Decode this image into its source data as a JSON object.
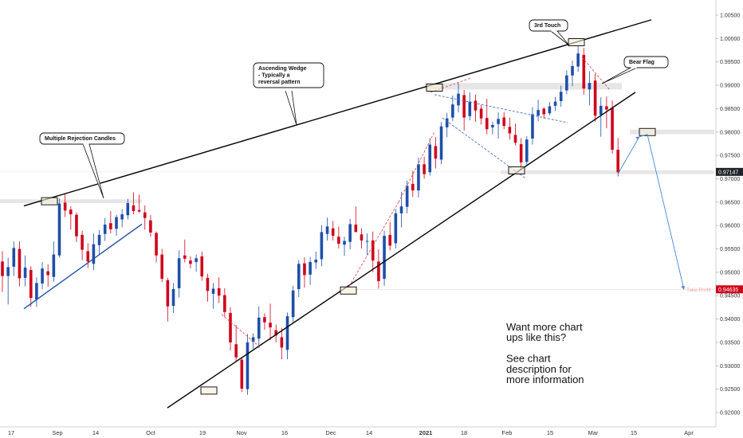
{
  "chart_data": {
    "type": "candlestick",
    "y_axis": {
      "ticks": [
        "1.00500",
        "1.00000",
        "0.99500",
        "0.99000",
        "0.98500",
        "0.98000",
        "0.97500",
        "0.97000",
        "0.96500",
        "0.96000",
        "0.95500",
        "0.95000",
        "0.94500",
        "0.94000",
        "0.93500",
        "0.93000",
        "0.92500",
        "0.92000"
      ],
      "range": [
        0.9193,
        1.0065
      ],
      "position": "right"
    },
    "x_axis": {
      "ticks": [
        "17",
        "Sep",
        "14",
        "Oct",
        "19",
        "Nov",
        "16",
        "Dec",
        "14",
        "2021",
        "18",
        "Feb",
        "15",
        "Mar",
        "15",
        "Apr"
      ],
      "bold_ticks": [
        "2021"
      ]
    },
    "price_tags": [
      {
        "label": "0.97147",
        "value": 0.97147,
        "color": "#1f2329"
      },
      {
        "label": "0.94635",
        "value": 0.94635,
        "color": "#d0021b"
      }
    ],
    "take_profit_label": "Take Profit",
    "annotations": [
      {
        "text": "Multiple Rejection Candles"
      },
      {
        "text": "Ascending Wedge - Typically a reversal pattern",
        "lines": [
          "Ascending Wedge",
          "- Typically a",
          "reversal pattern"
        ]
      },
      {
        "text": "3rd Touch"
      },
      {
        "text": "Bear Flag"
      }
    ],
    "promo_lines": [
      "Want more chart",
      "ups like this?",
      "",
      "See chart",
      "description for",
      "more information"
    ],
    "colors": {
      "up": "#1e4fa8",
      "down": "#d0021b",
      "trendline": "#000000",
      "support": "#1e4fa8",
      "zone": "#e6e6e6",
      "dashed_red": "#e05050",
      "dashed_blue": "#4a6fd0",
      "projection": "#4a86d9"
    },
    "candles": [
      [
        0.9523,
        0.9545,
        0.9458,
        0.9492
      ],
      [
        0.9492,
        0.9531,
        0.9431,
        0.9511
      ],
      [
        0.9512,
        0.9566,
        0.9492,
        0.9552
      ],
      [
        0.955,
        0.9566,
        0.947,
        0.9487
      ],
      [
        0.9488,
        0.9536,
        0.947,
        0.951
      ],
      [
        0.9505,
        0.9513,
        0.9426,
        0.9445
      ],
      [
        0.9442,
        0.9489,
        0.9426,
        0.9477
      ],
      [
        0.9476,
        0.9522,
        0.9464,
        0.9508
      ],
      [
        0.9502,
        0.9517,
        0.9469,
        0.9494
      ],
      [
        0.949,
        0.9566,
        0.948,
        0.9538
      ],
      [
        0.9536,
        0.9658,
        0.9531,
        0.9647
      ],
      [
        0.9649,
        0.9668,
        0.9618,
        0.9632
      ],
      [
        0.9634,
        0.9641,
        0.9591,
        0.9624
      ],
      [
        0.9623,
        0.9628,
        0.9565,
        0.9577
      ],
      [
        0.958,
        0.9589,
        0.9526,
        0.9548
      ],
      [
        0.9545,
        0.9562,
        0.9509,
        0.9523
      ],
      [
        0.9518,
        0.9583,
        0.9505,
        0.956
      ],
      [
        0.9558,
        0.959,
        0.9538,
        0.958
      ],
      [
        0.9582,
        0.9616,
        0.9567,
        0.9602
      ],
      [
        0.9605,
        0.9631,
        0.9583,
        0.9592
      ],
      [
        0.9593,
        0.9623,
        0.9578,
        0.9618
      ],
      [
        0.9613,
        0.9635,
        0.9596,
        0.9624
      ],
      [
        0.9622,
        0.9657,
        0.9613,
        0.9648
      ],
      [
        0.9643,
        0.9671,
        0.9624,
        0.9631
      ],
      [
        0.9633,
        0.9666,
        0.9627,
        0.963
      ],
      [
        0.9628,
        0.9643,
        0.9591,
        0.9616
      ],
      [
        0.9611,
        0.9622,
        0.9576,
        0.9585
      ],
      [
        0.9584,
        0.9587,
        0.9521,
        0.9536
      ],
      [
        0.9538,
        0.955,
        0.9479,
        0.9486
      ],
      [
        0.9483,
        0.9488,
        0.9395,
        0.9427
      ],
      [
        0.9428,
        0.9477,
        0.9413,
        0.9464
      ],
      [
        0.9466,
        0.9547,
        0.9446,
        0.953
      ],
      [
        0.9536,
        0.957,
        0.9521,
        0.9529
      ],
      [
        0.9525,
        0.9534,
        0.9508,
        0.9518
      ],
      [
        0.9522,
        0.9538,
        0.9501,
        0.953
      ],
      [
        0.9534,
        0.9544,
        0.9482,
        0.9491
      ],
      [
        0.9488,
        0.9497,
        0.9437,
        0.946
      ],
      [
        0.9454,
        0.9477,
        0.9422,
        0.9465
      ],
      [
        0.9466,
        0.9489,
        0.9434,
        0.945
      ],
      [
        0.9451,
        0.9466,
        0.9404,
        0.9415
      ],
      [
        0.9413,
        0.9425,
        0.9333,
        0.935
      ],
      [
        0.9346,
        0.9387,
        0.9308,
        0.9318
      ],
      [
        0.9313,
        0.9319,
        0.9244,
        0.9251
      ],
      [
        0.925,
        0.9368,
        0.9238,
        0.935
      ],
      [
        0.9351,
        0.9369,
        0.9336,
        0.9361
      ],
      [
        0.9358,
        0.9427,
        0.9338,
        0.9403
      ],
      [
        0.9404,
        0.9412,
        0.9377,
        0.9393
      ],
      [
        0.9392,
        0.9433,
        0.9355,
        0.9382
      ],
      [
        0.9376,
        0.9388,
        0.935,
        0.9365
      ],
      [
        0.9361,
        0.9381,
        0.9314,
        0.9339
      ],
      [
        0.9334,
        0.9414,
        0.9314,
        0.9406
      ],
      [
        0.9404,
        0.9471,
        0.9393,
        0.9461
      ],
      [
        0.9464,
        0.9526,
        0.9447,
        0.9518
      ],
      [
        0.9519,
        0.9532,
        0.9467,
        0.9494
      ],
      [
        0.9495,
        0.9533,
        0.9473,
        0.9522
      ],
      [
        0.9521,
        0.9544,
        0.9507,
        0.9527
      ],
      [
        0.9528,
        0.9601,
        0.9513,
        0.9586
      ],
      [
        0.9582,
        0.9617,
        0.9568,
        0.9598
      ],
      [
        0.9594,
        0.961,
        0.9568,
        0.9578
      ],
      [
        0.9576,
        0.9598,
        0.9551,
        0.9561
      ],
      [
        0.9559,
        0.9576,
        0.9535,
        0.9567
      ],
      [
        0.9565,
        0.9614,
        0.9549,
        0.9603
      ],
      [
        0.9602,
        0.9641,
        0.9593,
        0.9586
      ],
      [
        0.9581,
        0.9594,
        0.9551,
        0.9568
      ],
      [
        0.9566,
        0.9583,
        0.9537,
        0.9567
      ],
      [
        0.9568,
        0.9587,
        0.95,
        0.9525
      ],
      [
        0.9523,
        0.9549,
        0.9465,
        0.9481
      ],
      [
        0.9486,
        0.9589,
        0.9471,
        0.9578
      ],
      [
        0.958,
        0.9608,
        0.9547,
        0.9557
      ],
      [
        0.9562,
        0.9635,
        0.9551,
        0.9626
      ],
      [
        0.9626,
        0.9672,
        0.9596,
        0.9641
      ],
      [
        0.964,
        0.9696,
        0.9626,
        0.9685
      ],
      [
        0.9689,
        0.9717,
        0.9661,
        0.9675
      ],
      [
        0.9675,
        0.9745,
        0.966,
        0.9731
      ],
      [
        0.9731,
        0.9747,
        0.97,
        0.971
      ],
      [
        0.9714,
        0.9787,
        0.9707,
        0.9773
      ],
      [
        0.977,
        0.9789,
        0.9722,
        0.9743
      ],
      [
        0.9741,
        0.9821,
        0.9731,
        0.9812
      ],
      [
        0.981,
        0.9841,
        0.9789,
        0.9829
      ],
      [
        0.9831,
        0.9878,
        0.9823,
        0.9859
      ],
      [
        0.9857,
        0.9905,
        0.9842,
        0.9882
      ],
      [
        0.9879,
        0.989,
        0.9803,
        0.9831
      ],
      [
        0.9834,
        0.9885,
        0.9825,
        0.9865
      ],
      [
        0.9867,
        0.988,
        0.9822,
        0.9846
      ],
      [
        0.985,
        0.9858,
        0.9816,
        0.9829
      ],
      [
        0.983,
        0.9871,
        0.9795,
        0.9806
      ],
      [
        0.981,
        0.9822,
        0.9795,
        0.9815
      ],
      [
        0.9817,
        0.9842,
        0.9786,
        0.9828
      ],
      [
        0.9831,
        0.9842,
        0.9806,
        0.9813
      ],
      [
        0.9811,
        0.9831,
        0.9784,
        0.9797
      ],
      [
        0.9794,
        0.9818,
        0.9771,
        0.9777
      ],
      [
        0.9774,
        0.9787,
        0.9718,
        0.9735
      ],
      [
        0.9736,
        0.9791,
        0.973,
        0.9784
      ],
      [
        0.9786,
        0.9853,
        0.9773,
        0.9838
      ],
      [
        0.9835,
        0.9869,
        0.9823,
        0.9847
      ],
      [
        0.985,
        0.9853,
        0.9828,
        0.9838
      ],
      [
        0.984,
        0.9864,
        0.9836,
        0.9855
      ],
      [
        0.9856,
        0.9875,
        0.9845,
        0.9865
      ],
      [
        0.9866,
        0.9899,
        0.9854,
        0.9886
      ],
      [
        0.9889,
        0.9932,
        0.9881,
        0.9921
      ],
      [
        0.9921,
        0.9953,
        0.9898,
        0.9941
      ],
      [
        0.994,
        0.9985,
        0.9929,
        0.9968
      ],
      [
        0.9965,
        0.998,
        0.988,
        0.9893
      ],
      [
        0.9891,
        0.993,
        0.9857,
        0.9905
      ],
      [
        0.991,
        0.9924,
        0.9822,
        0.9835
      ],
      [
        0.9837,
        0.9874,
        0.979,
        0.9856
      ],
      [
        0.9855,
        0.9876,
        0.9808,
        0.9848
      ],
      [
        0.9851,
        0.9867,
        0.9754,
        0.9762
      ],
      [
        0.9762,
        0.9787,
        0.9705,
        0.9714
      ]
    ]
  }
}
